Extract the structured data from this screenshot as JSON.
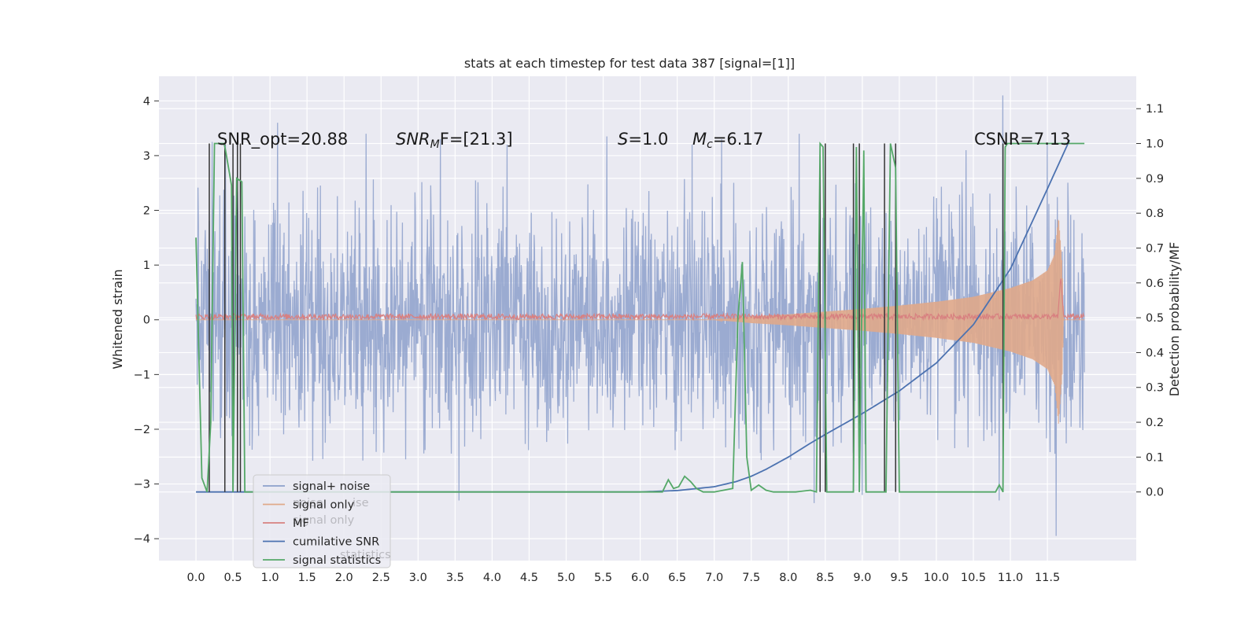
{
  "chart_data": {
    "type": "line",
    "title": "stats at each timestep for test data 387 [signal=[1]]",
    "xlabel": "",
    "ylabel": "Whitened strain",
    "y2label": "Detection probability/MF",
    "xlim": [
      -0.5,
      12.7
    ],
    "ylim": [
      -4.4,
      4.45
    ],
    "y2lim": [
      -0.197,
      1.193
    ],
    "grid": true,
    "x_ticks": [
      "0.0",
      "0.5",
      "1.0",
      "1.5",
      "2.0",
      "2.5",
      "3.0",
      "3.5",
      "4.0",
      "4.5",
      "5.0",
      "5.5",
      "6.0",
      "6.5",
      "7.0",
      "7.5",
      "8.0",
      "8.5",
      "9.0",
      "9.5",
      "10.0",
      "10.5",
      "11.0",
      "11.5"
    ],
    "y_ticks": [
      "4",
      "3",
      "2",
      "1",
      "0",
      "−1",
      "−2",
      "−3",
      "−4"
    ],
    "y2_ticks": [
      "1.1",
      "1.0",
      "0.9",
      "0.8",
      "0.7",
      "0.6",
      "0.5",
      "0.4",
      "0.3",
      "0.2",
      "0.1",
      "0.0"
    ],
    "annotations": {
      "snr_opt": "SNR_opt=20.88",
      "snr_mf_sym": "SNR",
      "snr_mf_sub": "M",
      "snr_mf_rest": "F=[21.3]",
      "s_sym": "S",
      "s_rest": "=1.0",
      "mc_sym": "M",
      "mc_sub": "c",
      "mc_rest": "=6.17",
      "csnr": "CSNR=7.13"
    },
    "legend": {
      "placement": "lower-left",
      "entries": [
        {
          "label": "signal+ noise",
          "color": "#8da0cb"
        },
        {
          "label": "signal only",
          "color": "#e0a98a"
        },
        {
          "label": "MF",
          "color": "#d88080"
        },
        {
          "label": "cumilative SNR",
          "color": "#4c72b0"
        },
        {
          "label": "signal statistics",
          "color": "#55a868"
        }
      ],
      "ghost_labels": [
        "noise",
        "signal only",
        "ise",
        "statistics"
      ]
    },
    "series": [
      {
        "name": "signal+ noise",
        "axis": "left",
        "t_range": [
          0.0,
          12.0
        ],
        "baseline_sigma": 1.0,
        "envelope": {
          "t": [
            0.0,
            12.0
          ],
          "upper": [
            2.6,
            2.6
          ],
          "lower": [
            -2.6,
            -2.6
          ]
        },
        "spikes_up": [
          [
            0.22,
            3.25
          ],
          [
            0.4,
            3.2
          ],
          [
            1.1,
            3.6
          ],
          [
            2.3,
            3.4
          ],
          [
            3.3,
            3.3
          ],
          [
            4.2,
            3.2
          ],
          [
            5.55,
            3.35
          ],
          [
            6.7,
            3.2
          ],
          [
            7.1,
            3.3
          ],
          [
            8.15,
            3.4
          ],
          [
            10.4,
            3.1
          ],
          [
            10.9,
            4.1
          ],
          [
            11.5,
            3.2
          ]
        ],
        "spikes_down": [
          [
            3.55,
            -3.3
          ],
          [
            8.35,
            -3.35
          ],
          [
            9.0,
            -3.2
          ],
          [
            10.85,
            -3.3
          ],
          [
            11.62,
            -3.95
          ]
        ],
        "color": "#8da0cb"
      },
      {
        "name": "signal only",
        "axis": "left",
        "t": [
          0.0,
          7.0,
          7.5,
          8.0,
          8.5,
          9.0,
          9.5,
          10.0,
          10.5,
          11.0,
          11.3,
          11.5,
          11.6,
          11.65,
          11.7,
          11.72,
          11.8
        ],
        "amplitude": [
          0.0,
          0.0,
          0.06,
          0.1,
          0.15,
          0.2,
          0.26,
          0.33,
          0.42,
          0.58,
          0.72,
          0.9,
          1.2,
          1.9,
          1.0,
          0.0,
          0.0
        ],
        "color": "#e0a98a"
      },
      {
        "name": "MF",
        "axis": "right",
        "t_range": [
          0.0,
          12.0
        ],
        "level": 0.5,
        "noise_amplitude": 0.008,
        "peak": [
          11.68,
          0.62
        ],
        "color": "#d88080"
      },
      {
        "name": "cumilative SNR",
        "axis": "right",
        "t": [
          0.0,
          4.0,
          6.0,
          6.5,
          7.0,
          7.3,
          7.5,
          7.7,
          8.0,
          8.3,
          8.5,
          9.0,
          9.5,
          10.0,
          10.5,
          11.0,
          11.5,
          11.8
        ],
        "values": [
          0.0,
          0.0,
          0.0,
          0.004,
          0.015,
          0.03,
          0.045,
          0.065,
          0.1,
          0.14,
          0.165,
          0.225,
          0.29,
          0.37,
          0.48,
          0.64,
          0.87,
          1.01
        ],
        "color": "#4c72b0"
      },
      {
        "name": "signal statistics",
        "axis": "right",
        "t": [
          0.0,
          0.08,
          0.15,
          0.2,
          0.25,
          0.38,
          0.4,
          0.48,
          0.5,
          0.55,
          0.62,
          0.66,
          0.72,
          6.3,
          6.38,
          6.45,
          6.52,
          6.6,
          6.68,
          6.76,
          6.85,
          7.0,
          7.25,
          7.32,
          7.38,
          7.44,
          7.5,
          7.6,
          7.7,
          7.8,
          8.1,
          8.3,
          8.38,
          8.43,
          8.47,
          8.52,
          8.55,
          8.88,
          8.92,
          8.96,
          9.02,
          9.05,
          9.32,
          9.38,
          9.45,
          9.5,
          9.6,
          10.8,
          10.85,
          10.9,
          10.93,
          10.96,
          11.0,
          11.1,
          12.0
        ],
        "values": [
          0.73,
          0.04,
          0.0,
          0.2,
          1.0,
          1.0,
          0.98,
          0.88,
          0.0,
          0.9,
          0.89,
          0.0,
          0.0,
          0.0,
          0.035,
          0.01,
          0.015,
          0.045,
          0.03,
          0.01,
          0.0,
          0.0,
          0.01,
          0.5,
          0.66,
          0.1,
          0.005,
          0.02,
          0.005,
          0.0,
          0.0,
          0.005,
          0.0,
          1.0,
          0.99,
          0.0,
          0.0,
          0.0,
          0.99,
          0.0,
          0.98,
          0.0,
          0.0,
          1.0,
          0.93,
          0.0,
          0.0,
          0.0,
          0.02,
          0.0,
          0.99,
          1.0,
          1.0,
          1.0,
          1.0
        ],
        "color": "#55a868"
      },
      {
        "name": "",
        "axis": "right",
        "description_free": true,
        "vertical_lines": [
          0.18,
          0.39,
          0.5,
          0.56,
          0.6,
          8.43,
          8.5,
          8.88,
          8.96,
          9.3,
          9.45,
          10.9
        ],
        "line_top": 1.0,
        "line_bottom": 0.0,
        "color": "#333333"
      }
    ]
  }
}
